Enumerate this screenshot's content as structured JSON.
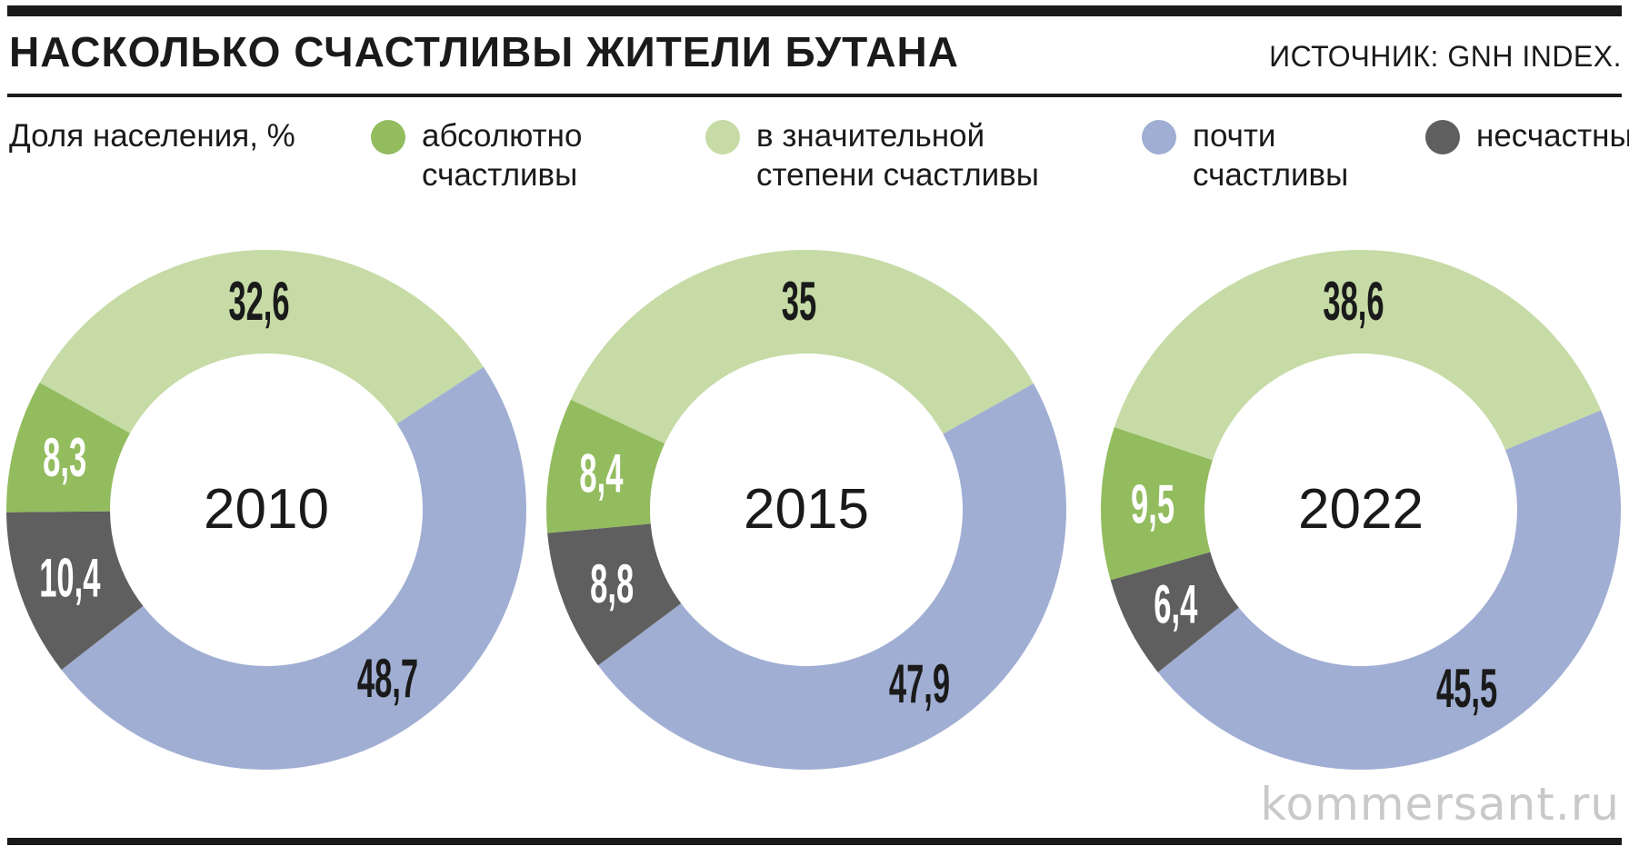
{
  "header": {
    "title": "НАСКОЛЬКО СЧАСТЛИВЫ ЖИТЕЛИ БУТАНА",
    "source": "ИСТОЧНИК: GNH INDEX."
  },
  "subtitle": "Доля населения, %",
  "legend": [
    {
      "label": "абсолютно\nсчастливы",
      "color": "#92bc5e"
    },
    {
      "label": "в значительной\nстепени счастливы",
      "color": "#c6dba6"
    },
    {
      "label": "почти\nсчастливы",
      "color": "#a0aed3"
    },
    {
      "label": "несчастны",
      "color": "#5f5f5f"
    }
  ],
  "watermark": "kommersant.ru",
  "chart_data": [
    {
      "type": "pie",
      "center_label": "2010",
      "categories": [
        "в значительной степени счастливы",
        "почти счастливы",
        "несчастны",
        "абсолютно счастливы"
      ],
      "labels": [
        "32,6",
        "48,7",
        "10,4",
        "8,3"
      ],
      "values": [
        32.6,
        48.7,
        10.4,
        8.3
      ],
      "colors": [
        "#c6dba6",
        "#a0aed3",
        "#5f5f5f",
        "#92bc5e"
      ]
    },
    {
      "type": "pie",
      "center_label": "2015",
      "categories": [
        "в значительной степени счастливы",
        "почти счастливы",
        "несчастны",
        "абсолютно счастливы"
      ],
      "labels": [
        "35",
        "47,9",
        "8,8",
        "8,4"
      ],
      "values": [
        35,
        47.9,
        8.8,
        8.4
      ],
      "colors": [
        "#c6dba6",
        "#a0aed3",
        "#5f5f5f",
        "#92bc5e"
      ]
    },
    {
      "type": "pie",
      "center_label": "2022",
      "categories": [
        "в значительной степени счастливы",
        "почти счастливы",
        "несчастны",
        "абсолютно счастливы"
      ],
      "labels": [
        "38,6",
        "45,5",
        "6,4",
        "9,5"
      ],
      "values": [
        38.6,
        45.5,
        6.4,
        9.5
      ],
      "colors": [
        "#c6dba6",
        "#a0aed3",
        "#5f5f5f",
        "#92bc5e"
      ]
    }
  ]
}
